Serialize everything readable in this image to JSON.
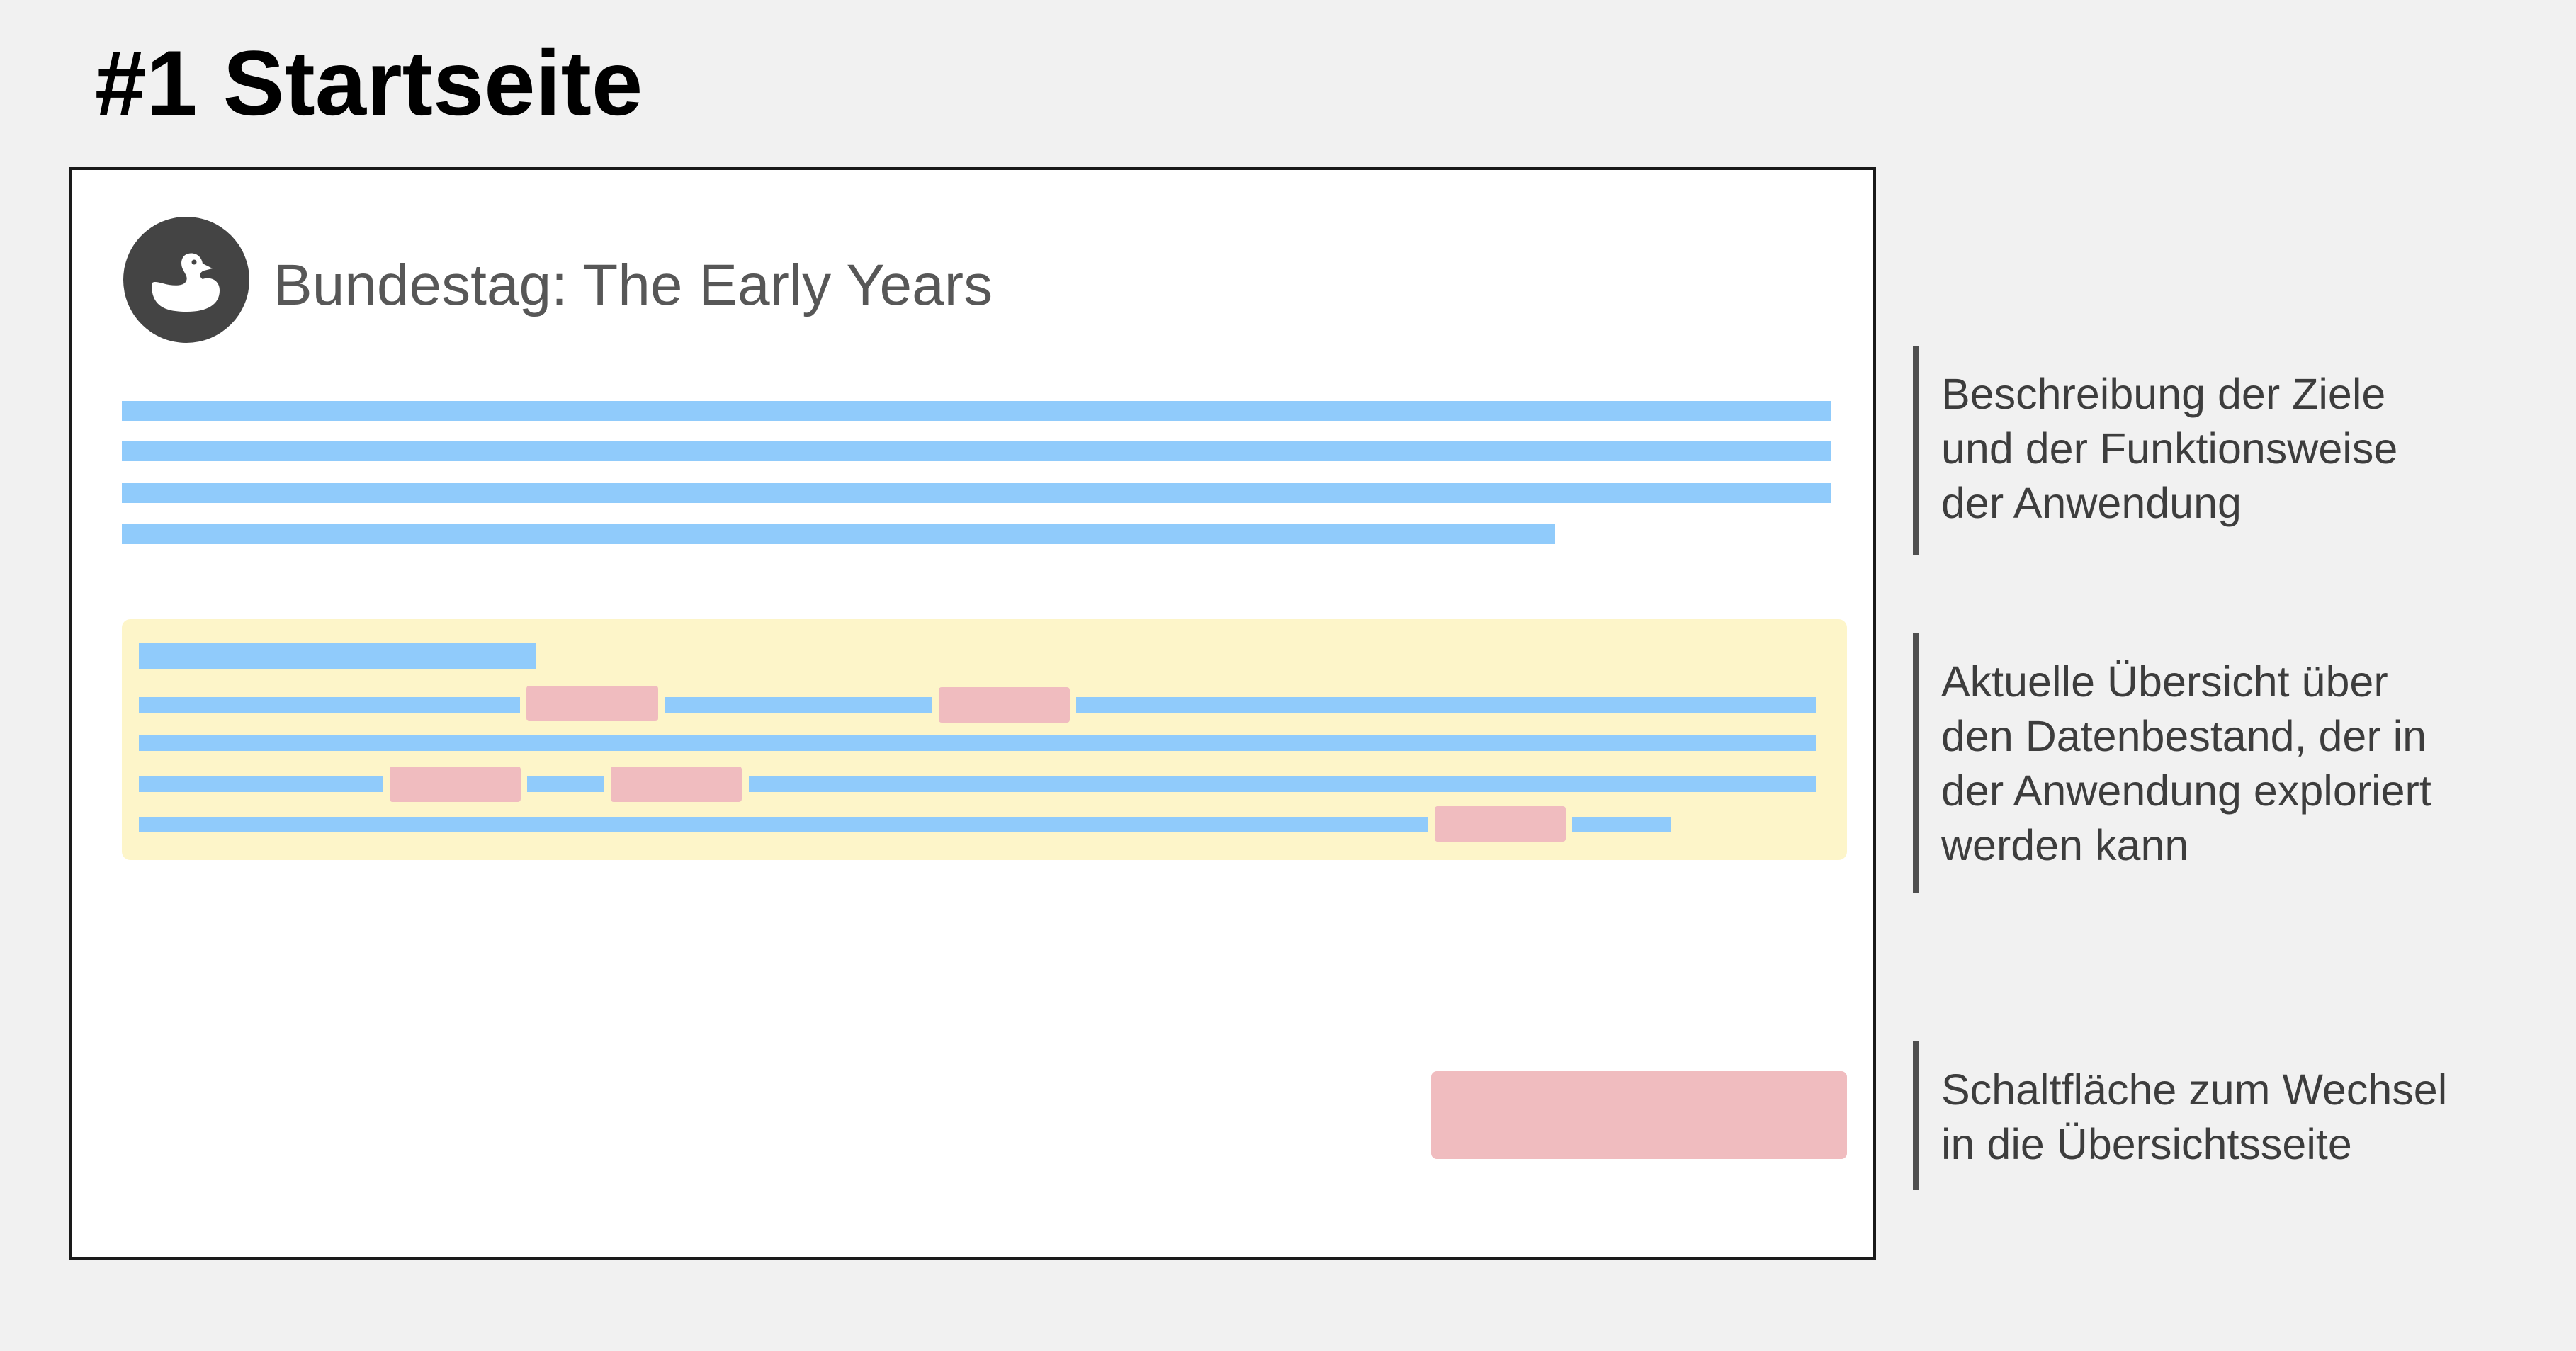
{
  "page_title": "#1 Startseite",
  "mockup": {
    "app_title": "Bundestag: The Early Years",
    "logo_icon": "duck-icon",
    "colors": {
      "text_placeholder": "#90cbfb",
      "link_placeholder": "#f0bcbf",
      "highlight_panel": "#fdf5c9",
      "logo_background": "#444444"
    }
  },
  "annotations": [
    {
      "lines": [
        "Beschreibung der Ziele",
        "und der Funktionsweise",
        "der Anwendung"
      ]
    },
    {
      "lines": [
        "Aktuelle Übersicht über",
        "den Datenbestand, der in",
        "der Anwendung exploriert",
        "werden kann"
      ]
    },
    {
      "lines": [
        "Schaltfläche zum Wechsel",
        "in die Übersichtsseite"
      ]
    }
  ]
}
